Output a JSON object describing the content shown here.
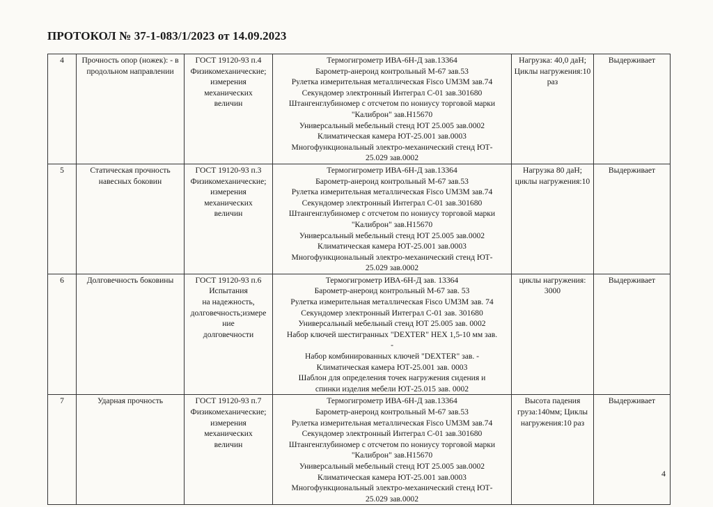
{
  "title": "ПРОТОКОЛ № 37-1-083/1/2023 от 14.09.2023",
  "page_number": "4",
  "rows": [
    {
      "num": "4",
      "name": "Прочность опор (ножек): - в продольном направлении",
      "standard": [
        "ГОСТ 19120-93 п.4",
        "Физикомеханические;",
        "измерения",
        "механических",
        "величин"
      ],
      "equipment": [
        "Термогигрометр ИВА-6Н-Д зав.13364",
        "Барометр-анероид контрольный М-67 зав.53",
        "Рулетка измерительная металлическая Fisco UM3M зав.74",
        "Секундомер электронный Интеграл С-01 зав.301680",
        "Штангенглубиномер с отсчетом по нониусу торговой марки",
        "\"Калиброн\" зав.H15670",
        "Универсальный мебельный стенд ЮТ 25.005 зав.0002",
        "Климатическая камера ЮТ-25.001 зав.0003",
        "Многофункциональный электро-механический стенд ЮТ-",
        "25.029 зав.0002"
      ],
      "conditions": "Нагрузка: 40,0 даН; Циклы нагружения:10 раз",
      "result": "Выдерживает"
    },
    {
      "num": "5",
      "name": "Статическая прочность навесных боковин",
      "standard": [
        "ГОСТ 19120-93 п.3",
        "Физикомеханические;",
        "измерения",
        "механических",
        "величин"
      ],
      "equipment": [
        "Термогигрометр ИВА-6Н-Д зав.13364",
        "Барометр-анероид контрольный М-67 зав.53",
        "Рулетка измерительная металлическая Fisco UM3M зав.74",
        "Секундомер электронный Интеграл С-01  зав.301680",
        "Штангенглубиномер с отсчетом по нониусу торговой марки",
        "\"Калиброн\" зав.H15670",
        "Универсальный мебельный стенд ЮТ 25.005 зав.0002",
        "Климатическая камера ЮТ-25.001 зав.0003",
        "Многофункциональный электро-механический стенд ЮТ-",
        "25.029 зав.0002"
      ],
      "conditions": "Нагрузка 80 даН; циклы нагружения:10",
      "result": "Выдерживает"
    },
    {
      "num": "6",
      "name": "Долговечность боковины",
      "standard": [
        "ГОСТ 19120-93 п.6",
        "Испытания",
        "на надежность,",
        "долговечность;измере",
        "ние",
        "долговечности"
      ],
      "equipment": [
        "Термогигрометр ИВА-6Н-Д зав.  13364",
        "Барометр-анероид контрольный М-67 зав.  53",
        "Рулетка измерительная металлическая Fisco UM3M зав.  74",
        "Секундомер электронный Интеграл С-01 зав.  301680",
        "Универсальный мебельный стенд ЮТ 25.005 зав.  0002",
        "Набор ключей шестигранных \"DEXTER\" HEX 1,5-10 мм зав.",
        "-",
        "Набор комбинированных ключей \"DEXTER\" зав.  -",
        "Климатическая камера ЮТ-25.001 зав.  0003",
        "Шаблон для определения точек нагружения сидения и",
        "спинки изделия мебели ЮТ-25.015 зав.  0002"
      ],
      "conditions": "циклы нагружения: 3000",
      "result": "Выдерживает"
    },
    {
      "num": "7",
      "name": "Ударная прочность",
      "standard": [
        "ГОСТ 19120-93 п.7",
        "Физикомеханические;",
        "измерения",
        "механических",
        "величин"
      ],
      "equipment": [
        "Термогигрометр ИВА-6Н-Д зав.13364",
        "Барометр-анероид контрольный М-67 зав.53",
        "Рулетка измерительная металлическая Fisco UM3M зав.74",
        "Секундомер электронный Интеграл С-01 зав.301680",
        "Штангенглубиномер с отсчетом по нониусу торговой марки",
        "\"Калиброн\" зав.H15670",
        "Универсальный мебельный стенд ЮТ 25.005 зав.0002",
        "Климатическая камера ЮТ-25.001 зав.0003",
        "Многофункциональный электро-механический стенд ЮТ-",
        "25.029 зав.0002"
      ],
      "conditions": "Высота падения груза:140мм; Циклы нагружения:10 раз",
      "result": "Выдерживает"
    }
  ]
}
